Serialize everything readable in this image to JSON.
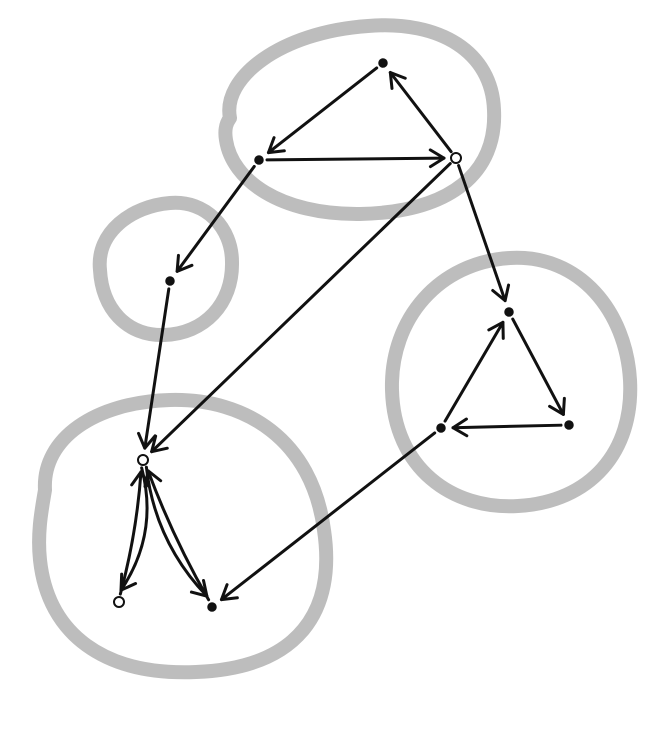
{
  "colors": {
    "region_stroke": "#bdbdbd",
    "ink": "#111111",
    "background": "#ffffff"
  },
  "diagram": {
    "type": "directed-graph",
    "style": "hand-drawn",
    "regions": [
      {
        "id": "region-top",
        "nodes": [
          "top-a",
          "top-b",
          "top-c"
        ]
      },
      {
        "id": "region-left-small",
        "nodes": [
          "mid-a"
        ]
      },
      {
        "id": "region-bottom-left",
        "nodes": [
          "bl-hub",
          "bl-left",
          "bl-right"
        ]
      },
      {
        "id": "region-right",
        "nodes": [
          "r-top",
          "r-left",
          "r-right"
        ]
      }
    ],
    "nodes": [
      {
        "id": "top-a",
        "open": false
      },
      {
        "id": "top-b",
        "open": false
      },
      {
        "id": "top-c",
        "open": true
      },
      {
        "id": "mid-a",
        "open": false
      },
      {
        "id": "bl-hub",
        "open": true
      },
      {
        "id": "bl-left",
        "open": true
      },
      {
        "id": "bl-right",
        "open": false
      },
      {
        "id": "r-top",
        "open": false
      },
      {
        "id": "r-left",
        "open": false
      },
      {
        "id": "r-right",
        "open": false
      }
    ],
    "edges": [
      {
        "from": "top-a",
        "to": "top-b"
      },
      {
        "from": "top-b",
        "to": "top-c"
      },
      {
        "from": "top-c",
        "to": "top-a"
      },
      {
        "from": "top-b",
        "to": "mid-a"
      },
      {
        "from": "top-c",
        "to": "bl-hub"
      },
      {
        "from": "top-c",
        "to": "r-top"
      },
      {
        "from": "mid-a",
        "to": "bl-hub"
      },
      {
        "from": "bl-hub",
        "to": "bl-left"
      },
      {
        "from": "bl-left",
        "to": "bl-hub"
      },
      {
        "from": "bl-hub",
        "to": "bl-right"
      },
      {
        "from": "bl-right",
        "to": "bl-hub"
      },
      {
        "from": "r-top",
        "to": "r-right"
      },
      {
        "from": "r-right",
        "to": "r-left"
      },
      {
        "from": "r-left",
        "to": "r-top"
      },
      {
        "from": "r-left",
        "to": "bl-right"
      }
    ]
  }
}
